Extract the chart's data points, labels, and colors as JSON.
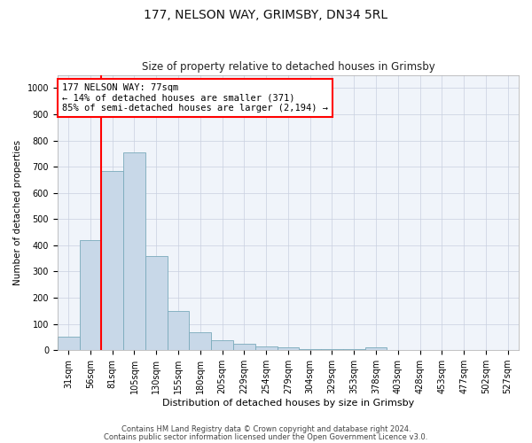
{
  "title1": "177, NELSON WAY, GRIMSBY, DN34 5RL",
  "title2": "Size of property relative to detached houses in Grimsby",
  "xlabel": "Distribution of detached houses by size in Grimsby",
  "ylabel": "Number of detached properties",
  "categories": [
    "31sqm",
    "56sqm",
    "81sqm",
    "105sqm",
    "130sqm",
    "155sqm",
    "180sqm",
    "205sqm",
    "229sqm",
    "254sqm",
    "279sqm",
    "304sqm",
    "329sqm",
    "353sqm",
    "378sqm",
    "403sqm",
    "428sqm",
    "453sqm",
    "477sqm",
    "502sqm",
    "527sqm"
  ],
  "values": [
    50,
    420,
    685,
    755,
    360,
    150,
    70,
    38,
    25,
    15,
    10,
    5,
    5,
    5,
    10,
    2,
    2,
    0,
    0,
    0,
    0
  ],
  "bar_color": "#c8d8e8",
  "bar_edge_color": "#7aaabb",
  "annotation_text": "177 NELSON WAY: 77sqm\n← 14% of detached houses are smaller (371)\n85% of semi-detached houses are larger (2,194) →",
  "annotation_box_color": "white",
  "annotation_box_edge_color": "red",
  "vline_color": "red",
  "ylim": [
    0,
    1050
  ],
  "yticks": [
    0,
    100,
    200,
    300,
    400,
    500,
    600,
    700,
    800,
    900,
    1000
  ],
  "footer1": "Contains HM Land Registry data © Crown copyright and database right 2024.",
  "footer2": "Contains public sector information licensed under the Open Government Licence v3.0.",
  "background_color": "#f0f4fa",
  "grid_color": "#c8d0e0",
  "title1_fontsize": 10,
  "title2_fontsize": 8.5,
  "xlabel_fontsize": 8,
  "ylabel_fontsize": 7.5,
  "tick_fontsize": 7,
  "footer_fontsize": 6,
  "annotation_fontsize": 7.5
}
